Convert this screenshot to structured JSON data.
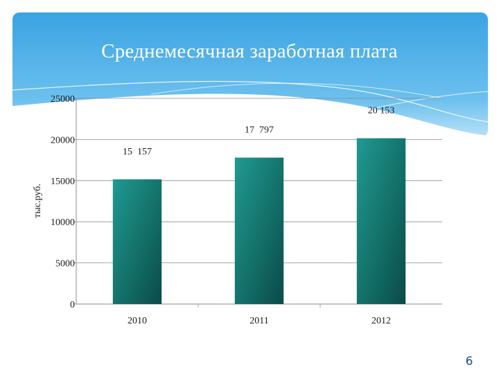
{
  "slide": {
    "title": "Среднемесячная заработная плата",
    "page_number": "6",
    "colors": {
      "header_top": "#3aa3e2",
      "header_bottom": "#b9e1f7",
      "bar_light": "#1f9a92",
      "bar_dark": "#0b4a4b",
      "grid": "#8c8c8c",
      "text": "#1a1a1a",
      "page_number": "#1f4f8a"
    }
  },
  "chart_data": {
    "type": "bar",
    "title": "",
    "xlabel": "",
    "ylabel": "тыс.руб.",
    "categories": [
      "2010",
      "2011",
      "2012"
    ],
    "values": [
      15157,
      17797,
      20153
    ],
    "data_labels": [
      "15  157",
      "17  797",
      "20 153"
    ],
    "ylim": [
      0,
      25000
    ],
    "yticks": [
      0,
      5000,
      10000,
      15000,
      20000,
      25000
    ],
    "grid": true,
    "legend": "none"
  }
}
